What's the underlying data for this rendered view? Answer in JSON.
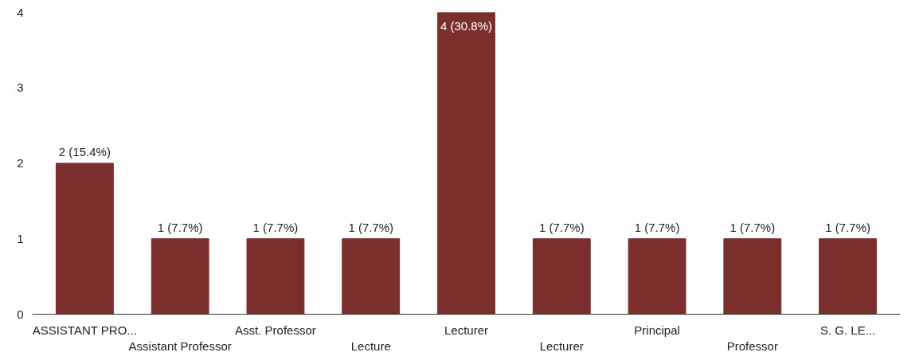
{
  "chart_data": {
    "type": "bar",
    "categories": [
      "ASSISTANT PRO...",
      "Assistant Professor",
      "Asst. Professor",
      "Lecture",
      "Lecturer",
      "Lecturer",
      "Principal",
      "Professor",
      "S. G. LE..."
    ],
    "values": [
      2,
      1,
      1,
      1,
      4,
      1,
      1,
      1,
      1
    ],
    "value_labels": [
      "2 (15.4%)",
      "1 (7.7%)",
      "1 (7.7%)",
      "1 (7.7%)",
      "4 (30.8%)",
      "1 (7.7%)",
      "1 (7.7%)",
      "1 (7.7%)",
      "1 (7.7%)"
    ],
    "color": "#7b2f2c",
    "ylim": [
      0,
      4
    ],
    "yticks": [
      0,
      1,
      2,
      3,
      4
    ]
  }
}
